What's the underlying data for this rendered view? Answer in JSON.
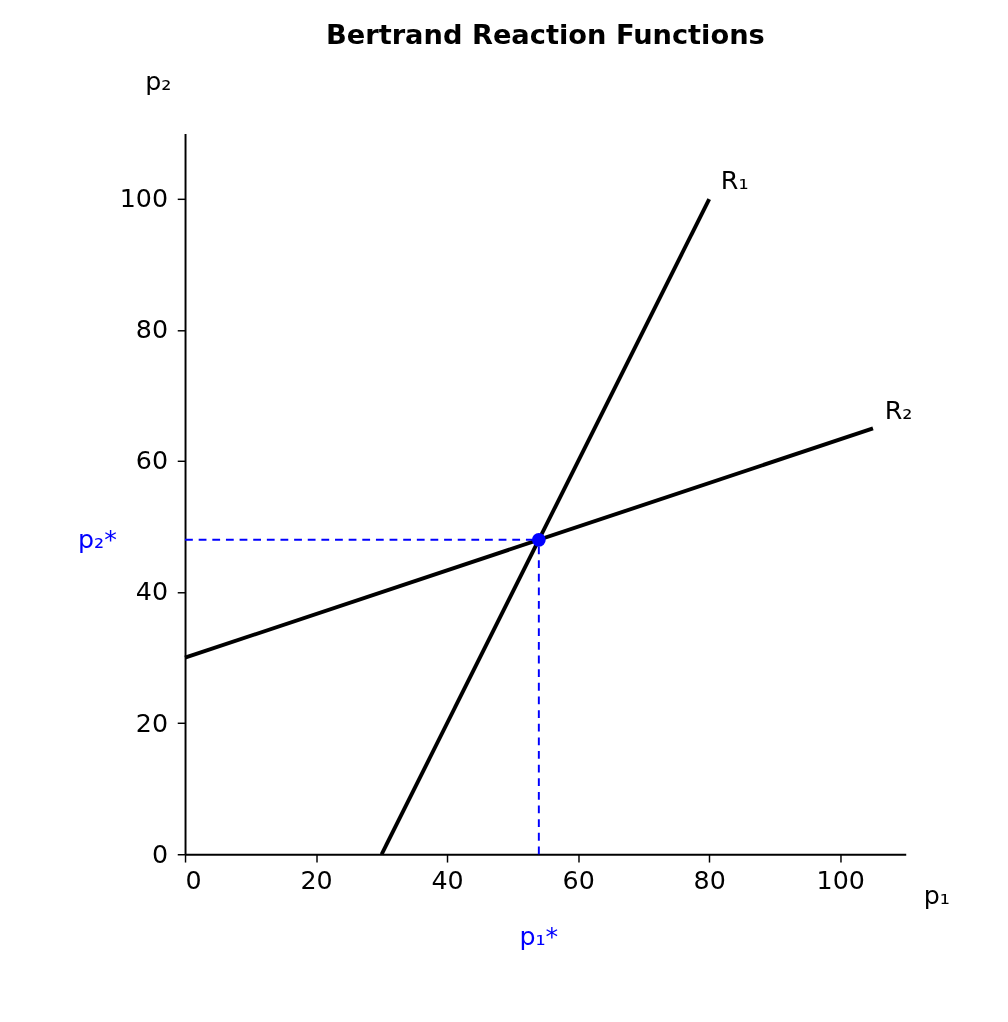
{
  "chart_data": {
    "type": "line",
    "title": "Bertrand Reaction Functions",
    "xlabel": "p₁",
    "ylabel": "p₂",
    "xlim": [
      0,
      110
    ],
    "ylim": [
      0,
      110
    ],
    "xticks": [
      0,
      20,
      40,
      60,
      80,
      100
    ],
    "yticks": [
      0,
      20,
      40,
      60,
      80,
      100
    ],
    "grid": false,
    "line_style": "solid",
    "series": [
      {
        "name": "R₁",
        "color": "#000000",
        "x": [
          30,
          80
        ],
        "values": [
          0,
          100
        ]
      },
      {
        "name": "R₂",
        "color": "#000000",
        "x": [
          0,
          105
        ],
        "values": [
          30,
          65
        ]
      },
      {
        "type": "line",
        "line_style": "dashed",
        "color": "#0000ff",
        "x": [
          54,
          54
        ],
        "values": [
          0,
          48
        ]
      },
      {
        "type": "line",
        "line_style": "dashed",
        "color": "#0000ff",
        "x": [
          0,
          54
        ],
        "values": [
          48,
          48
        ]
      },
      {
        "type": "scatter",
        "marker": "circle",
        "color": "#0000ff",
        "x": [
          54
        ],
        "values": [
          48
        ]
      }
    ],
    "annotations": [
      {
        "text": "p₁*",
        "x": 54,
        "y": 0
      },
      {
        "text": "p₂*",
        "x": 0,
        "y": 48
      }
    ]
  }
}
